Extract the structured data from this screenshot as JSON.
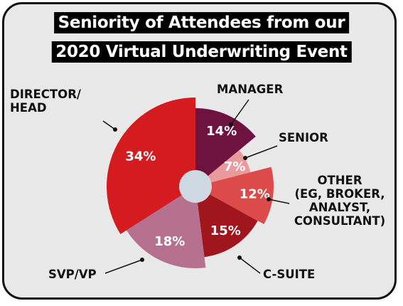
{
  "chart_data": {
    "type": "pie",
    "title_lines": [
      "Seniority of Attendees from our",
      "2020 Virtual Underwriting Event"
    ],
    "slices": [
      {
        "label_lines": [
          "MANAGER"
        ],
        "value": 14,
        "value_label": "14%",
        "color": "#6e1340"
      },
      {
        "label_lines": [
          "SENIOR"
        ],
        "value": 7,
        "value_label": "7%",
        "color": "#e89a9c"
      },
      {
        "label_lines": [
          "OTHER",
          "(EG, BROKER,",
          "ANALYST,",
          "CONSULTANT)"
        ],
        "value": 12,
        "value_label": "12%",
        "color": "#dd4a4a"
      },
      {
        "label_lines": [
          "C-SUITE"
        ],
        "value": 15,
        "value_label": "15%",
        "color": "#a0161c"
      },
      {
        "label_lines": [
          "SVP/VP"
        ],
        "value": 18,
        "value_label": "18%",
        "color": "#b5718f"
      },
      {
        "label_lines": [
          "DIRECTOR/",
          "HEAD"
        ],
        "value": 34,
        "value_label": "34%",
        "color": "#d41c20"
      }
    ]
  }
}
